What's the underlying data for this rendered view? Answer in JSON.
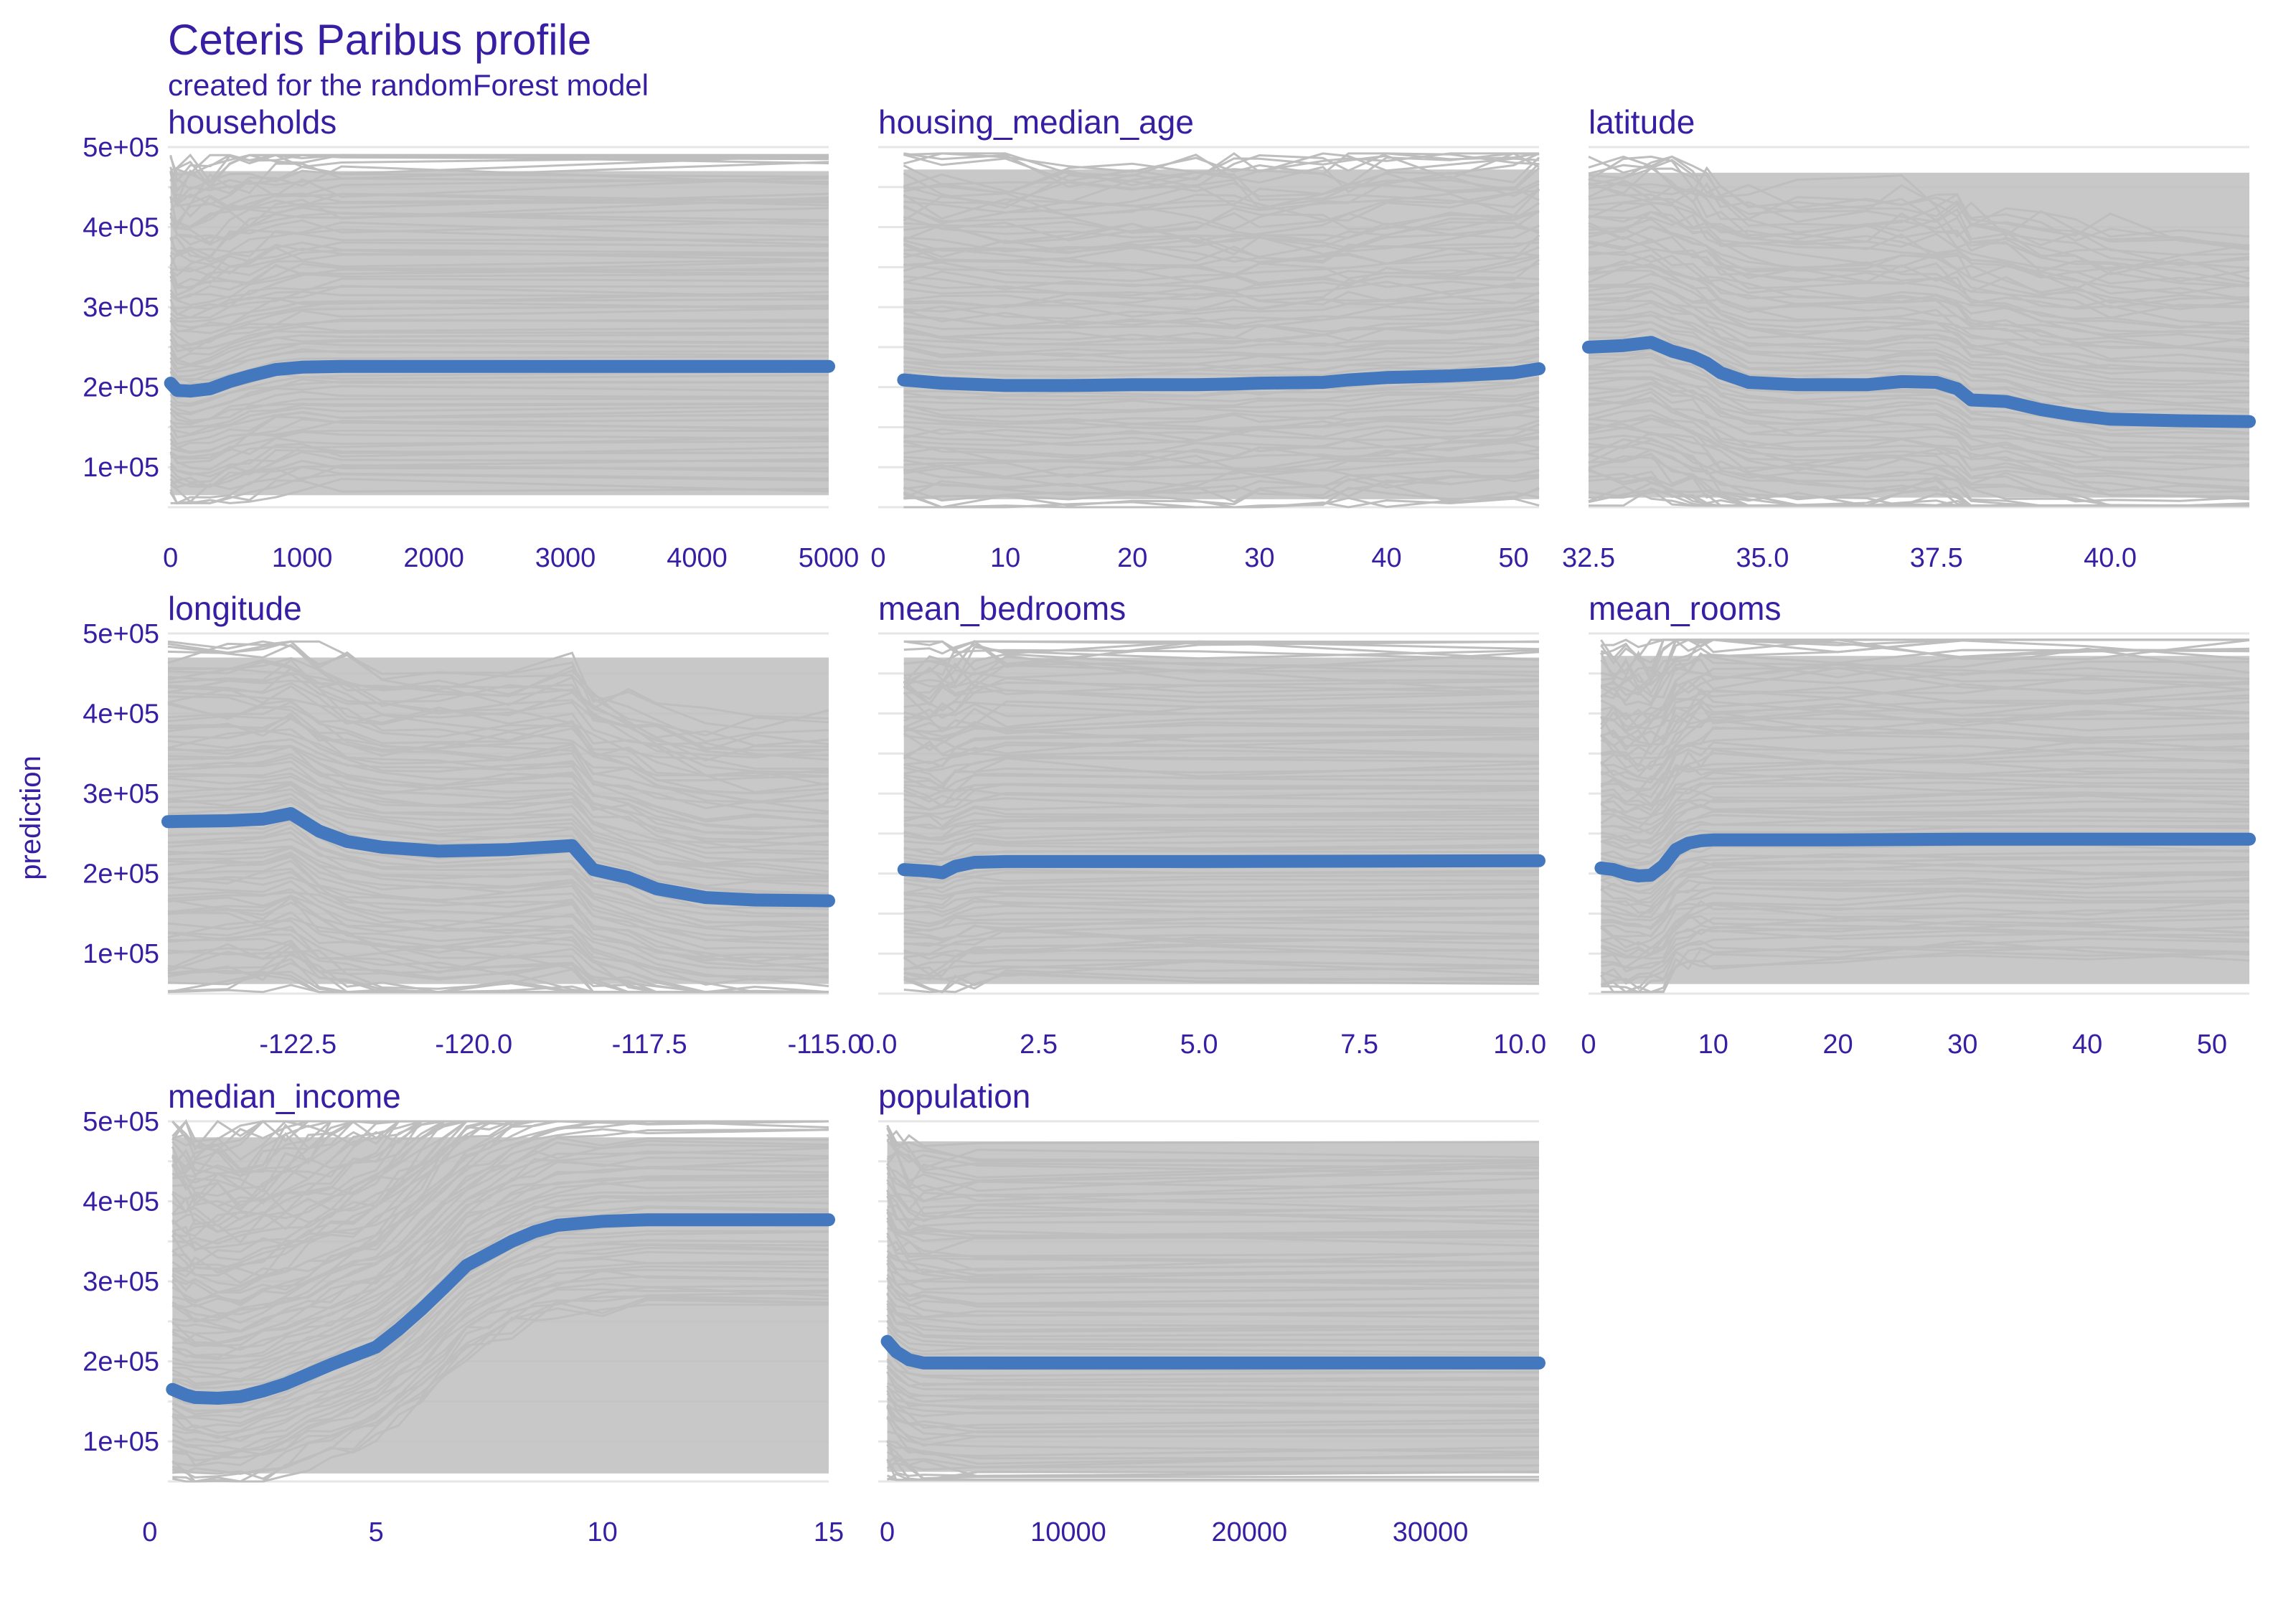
{
  "title": "Ceteris Paribus profile",
  "subtitle": "created for the randomForest model",
  "ylabel": "prediction",
  "colors": {
    "text": "#371ea3",
    "profile": "#4378bf",
    "background_lines": "#bebebe",
    "grid": "#e6e6e6"
  },
  "chart_data": {
    "type": "line",
    "facets": true,
    "ylim": [
      50000,
      500000
    ],
    "y_ticks": [
      100000,
      200000,
      300000,
      400000,
      500000
    ],
    "y_tick_labels": [
      "1e+05",
      "2e+05",
      "3e+05",
      "4e+05",
      "5e+05"
    ],
    "panels": [
      {
        "name": "households",
        "xlim": [
          -20,
          5000
        ],
        "x_ticks": [
          0,
          1000,
          2000,
          3000,
          4000,
          5000
        ],
        "x_tick_labels": [
          "0",
          "1000",
          "2000",
          "3000",
          "4000",
          "5000"
        ],
        "series": [
          {
            "x": [
              0,
              50,
              150,
              300,
              450,
              600,
              800,
              1000,
              1300,
              5000
            ],
            "y": [
              205000,
              196000,
              195000,
              198000,
              207000,
              214000,
              222000,
              225000,
              226000,
              226000
            ]
          }
        ],
        "band": {
          "lower": 55000,
          "upper": 490000
        }
      },
      {
        "name": "housing_median_age",
        "xlim": [
          0,
          52
        ],
        "x_ticks": [
          0,
          10,
          20,
          30,
          40,
          50
        ],
        "x_tick_labels": [
          "0",
          "10",
          "20",
          "30",
          "40",
          "50"
        ],
        "series": [
          {
            "x": [
              2,
              5,
              10,
              15,
              20,
              25,
              28,
              30,
              35,
              37,
              40,
              45,
              50,
              52
            ],
            "y": [
              209000,
              205000,
              202000,
              202000,
              203000,
              203000,
              204000,
              205000,
              206000,
              209000,
              212000,
              214000,
              218000,
              223000
            ]
          }
        ],
        "band": {
          "lower": 50000,
          "upper": 492000
        }
      },
      {
        "name": "latitude",
        "xlim": [
          32.5,
          42.0
        ],
        "x_ticks": [
          32.5,
          35.0,
          37.5,
          40.0
        ],
        "x_tick_labels": [
          "32.5",
          "35.0",
          "37.5",
          "40.0"
        ],
        "series": [
          {
            "x": [
              32.5,
              33.0,
              33.4,
              33.7,
              34.0,
              34.2,
              34.4,
              34.8,
              35.5,
              36.5,
              37.0,
              37.5,
              37.8,
              38.0,
              38.5,
              39.0,
              39.5,
              40.0,
              41.0,
              42.0
            ],
            "y": [
              250000,
              252000,
              256000,
              245000,
              238000,
              230000,
              218000,
              206000,
              203000,
              203000,
              207000,
              206000,
              198000,
              184000,
              182000,
              172000,
              165000,
              160000,
              158000,
              157000
            ]
          }
        ],
        "band": {
          "lower": 52000,
          "upper": 488000
        }
      },
      {
        "name": "longitude",
        "xlim": [
          -124.35,
          -114.95
        ],
        "x_ticks": [
          -122.5,
          -120.0,
          -117.5,
          -115.0
        ],
        "x_tick_labels": [
          "-122.5",
          "-120.0",
          "-117.5",
          "-115.0"
        ],
        "series": [
          {
            "x": [
              -124.35,
              -123.5,
              -123.0,
              -122.6,
              -122.2,
              -121.8,
              -121.3,
              -120.5,
              -119.5,
              -118.6,
              -118.3,
              -117.8,
              -117.4,
              -116.7,
              -116.0,
              -114.95
            ],
            "y": [
              265000,
              266000,
              268000,
              275000,
              253000,
              240000,
              233000,
              228000,
              230000,
              235000,
              205000,
              195000,
              181000,
              170000,
              167000,
              166000
            ]
          }
        ],
        "band": {
          "lower": 52000,
          "upper": 490000
        }
      },
      {
        "name": "mean_bedrooms",
        "xlim": [
          0,
          10.3
        ],
        "x_ticks": [
          0.0,
          2.5,
          5.0,
          7.5,
          10.0
        ],
        "x_tick_labels": [
          "0.0",
          "2.5",
          "5.0",
          "7.5",
          "10.0"
        ],
        "series": [
          {
            "x": [
              0.4,
              0.8,
              1.0,
              1.2,
              1.5,
              2.0,
              5.0,
              10.3
            ],
            "y": [
              205000,
              203000,
              201000,
              209000,
              214000,
              215000,
              215000,
              216000
            ]
          }
        ],
        "band": {
          "lower": 52000,
          "upper": 490000
        }
      },
      {
        "name": "mean_rooms",
        "xlim": [
          0,
          53
        ],
        "x_ticks": [
          0,
          10,
          20,
          30,
          40,
          50
        ],
        "x_tick_labels": [
          "0",
          "10",
          "20",
          "30",
          "40",
          "50"
        ],
        "series": [
          {
            "x": [
              1,
              2,
              3,
              4,
              5,
              6,
              7,
              8,
              9,
              10,
              20,
              30,
              40,
              53
            ],
            "y": [
              207000,
              205000,
              200000,
              197000,
              198000,
              210000,
              230000,
              238000,
              241000,
              242000,
              242000,
              243000,
              243000,
              243000
            ]
          }
        ],
        "band": {
          "lower": 52000,
          "upper": 492000
        }
      },
      {
        "name": "median_income",
        "xlim": [
          0.4,
          15.0
        ],
        "x_ticks": [
          0,
          5,
          10,
          15
        ],
        "x_tick_labels": [
          "0",
          "5",
          "10",
          "15"
        ],
        "series": [
          {
            "x": [
              0.5,
              0.8,
              1.0,
              1.5,
              2.0,
              2.5,
              3.0,
              3.5,
              4.0,
              4.5,
              5.0,
              5.5,
              6.0,
              6.5,
              7.0,
              7.5,
              8.0,
              8.5,
              9.0,
              10.0,
              11.0,
              15.0
            ],
            "y": [
              165000,
              158000,
              155000,
              154000,
              156000,
              163000,
              172000,
              184000,
              196000,
              207000,
              218000,
              240000,
              265000,
              292000,
              320000,
              335000,
              350000,
              362000,
              370000,
              375000,
              377000,
              377000
            ]
          }
        ],
        "band": {
          "lower": 50000,
          "upper": 500000
        }
      },
      {
        "name": "population",
        "xlim": [
          -500,
          36000
        ],
        "x_ticks": [
          0,
          10000,
          20000,
          30000
        ],
        "x_tick_labels": [
          "0",
          "10000",
          "20000",
          "30000"
        ],
        "series": [
          {
            "x": [
              0,
              500,
              1200,
              2000,
              5000,
              36000
            ],
            "y": [
              225000,
              212000,
              202000,
              198000,
              198000,
              198000
            ]
          }
        ],
        "band": {
          "lower": 52000,
          "upper": 495000
        }
      }
    ]
  }
}
